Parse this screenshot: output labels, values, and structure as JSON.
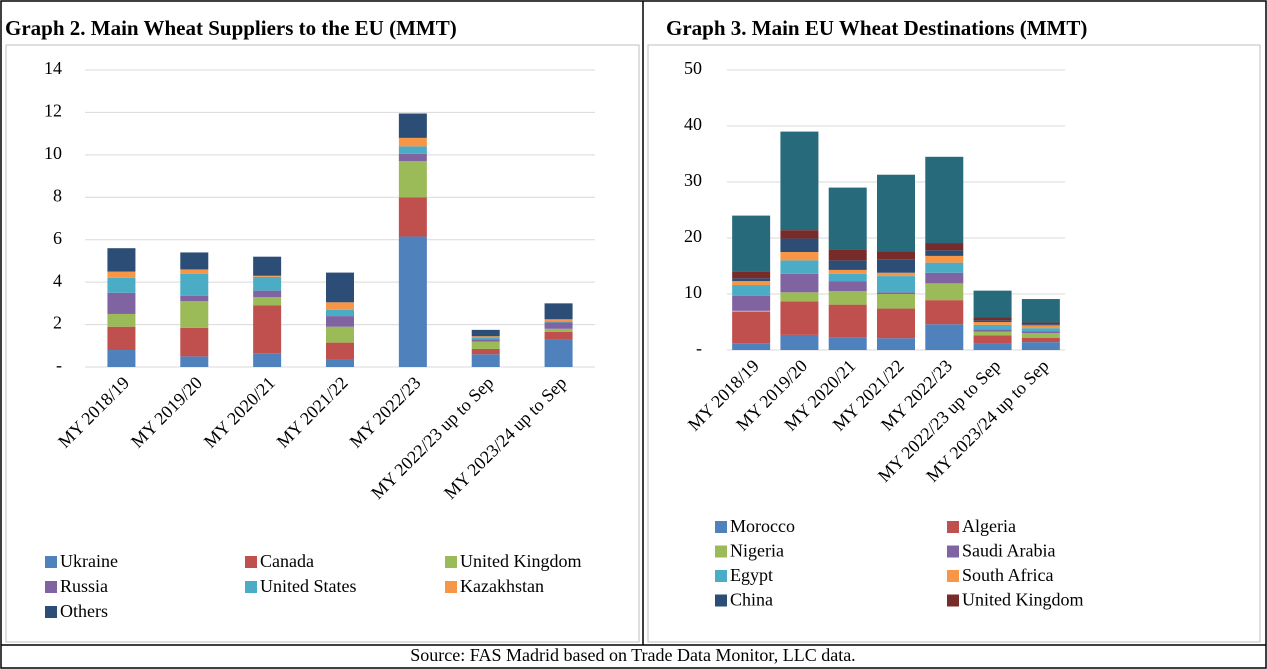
{
  "chart_data": [
    {
      "type": "stacked_bar",
      "title": "Graph 2. Main Wheat Suppliers to the EU (MMT)",
      "categories": [
        "MY 2018/19",
        "MY 2019/20",
        "MY 2020/21",
        "MY 2021/22",
        "MY 2022/23",
        "MY 2022/23 up to Sep",
        "MY 2023/24 up to Sep"
      ],
      "series": [
        {
          "name": "Ukraine",
          "color": "#4f81bd",
          "values": [
            0.8,
            0.5,
            0.65,
            0.35,
            6.15,
            0.6,
            1.3
          ]
        },
        {
          "name": "Canada",
          "color": "#c0504d",
          "values": [
            1.1,
            1.35,
            2.25,
            0.8,
            1.85,
            0.25,
            0.35
          ]
        },
        {
          "name": "United Kingdom",
          "color": "#9bbb59",
          "values": [
            0.6,
            1.25,
            0.4,
            0.75,
            1.7,
            0.35,
            0.15
          ]
        },
        {
          "name": "Russia",
          "color": "#8064a2",
          "values": [
            1.0,
            0.25,
            0.3,
            0.5,
            0.35,
            0.1,
            0.3
          ]
        },
        {
          "name": "United States",
          "color": "#4bacc6",
          "values": [
            0.7,
            1.05,
            0.65,
            0.3,
            0.35,
            0.1,
            0.05
          ]
        },
        {
          "name": "Kazakhstan",
          "color": "#f79646",
          "values": [
            0.3,
            0.2,
            0.05,
            0.35,
            0.4,
            0.05,
            0.1
          ]
        },
        {
          "name": "Others",
          "color": "#2c4d75",
          "values": [
            1.1,
            0.8,
            0.9,
            1.4,
            1.15,
            0.3,
            0.75
          ]
        }
      ],
      "ylim": [
        0,
        14
      ],
      "yticks": [
        {
          "value": 0,
          "label": "-"
        },
        2,
        4,
        6,
        8,
        10,
        12,
        14
      ],
      "grid": true
    },
    {
      "type": "stacked_bar",
      "title": "Graph 3. Main EU Wheat Destinations (MMT)",
      "categories": [
        "MY 2018/19",
        "MY 2019/20",
        "MY 2020/21",
        "MY 2021/22",
        "MY 2022/23",
        "MY 2022/23 up to Sep",
        "MY 2023/24 up to Sep"
      ],
      "series": [
        {
          "name": "Morocco",
          "color": "#4f81bd",
          "values": [
            1.2,
            2.7,
            2.2,
            2.1,
            4.6,
            1.1,
            1.4
          ]
        },
        {
          "name": "Algeria",
          "color": "#c0504d",
          "values": [
            5.6,
            6.0,
            5.9,
            5.3,
            4.3,
            1.5,
            0.8
          ]
        },
        {
          "name": "Nigeria",
          "color": "#9bbb59",
          "values": [
            0.2,
            1.6,
            2.4,
            2.6,
            3.0,
            0.7,
            0.8
          ]
        },
        {
          "name": "Saudi Arabia",
          "color": "#8064a2",
          "values": [
            2.7,
            3.3,
            1.8,
            0.3,
            1.9,
            0.4,
            0.3
          ]
        },
        {
          "name": "Egypt",
          "color": "#4bacc6",
          "values": [
            1.9,
            2.4,
            1.3,
            2.9,
            1.8,
            0.8,
            0.6
          ]
        },
        {
          "name": "South Africa",
          "color": "#f79646",
          "values": [
            0.7,
            1.5,
            0.7,
            0.6,
            1.2,
            0.5,
            0.5
          ]
        },
        {
          "name": "China",
          "color": "#2c4d75",
          "values": [
            0.5,
            2.4,
            1.7,
            2.4,
            1.0,
            0.3,
            0.2
          ]
        },
        {
          "name": "United Kingdom",
          "color": "#772c2a",
          "values": [
            1.2,
            1.5,
            2.0,
            1.4,
            1.3,
            0.5,
            0.3
          ]
        },
        {
          "name": null,
          "color": "#276a7c",
          "values": [
            10.0,
            17.6,
            11.0,
            13.7,
            15.4,
            4.8,
            4.2
          ]
        }
      ],
      "ylim": [
        0,
        50
      ],
      "yticks": [
        {
          "value": 0,
          "label": "-"
        },
        10,
        20,
        30,
        40,
        50
      ],
      "grid": true
    }
  ],
  "source": "Source: FAS Madrid based on Trade Data Monitor, LLC data."
}
